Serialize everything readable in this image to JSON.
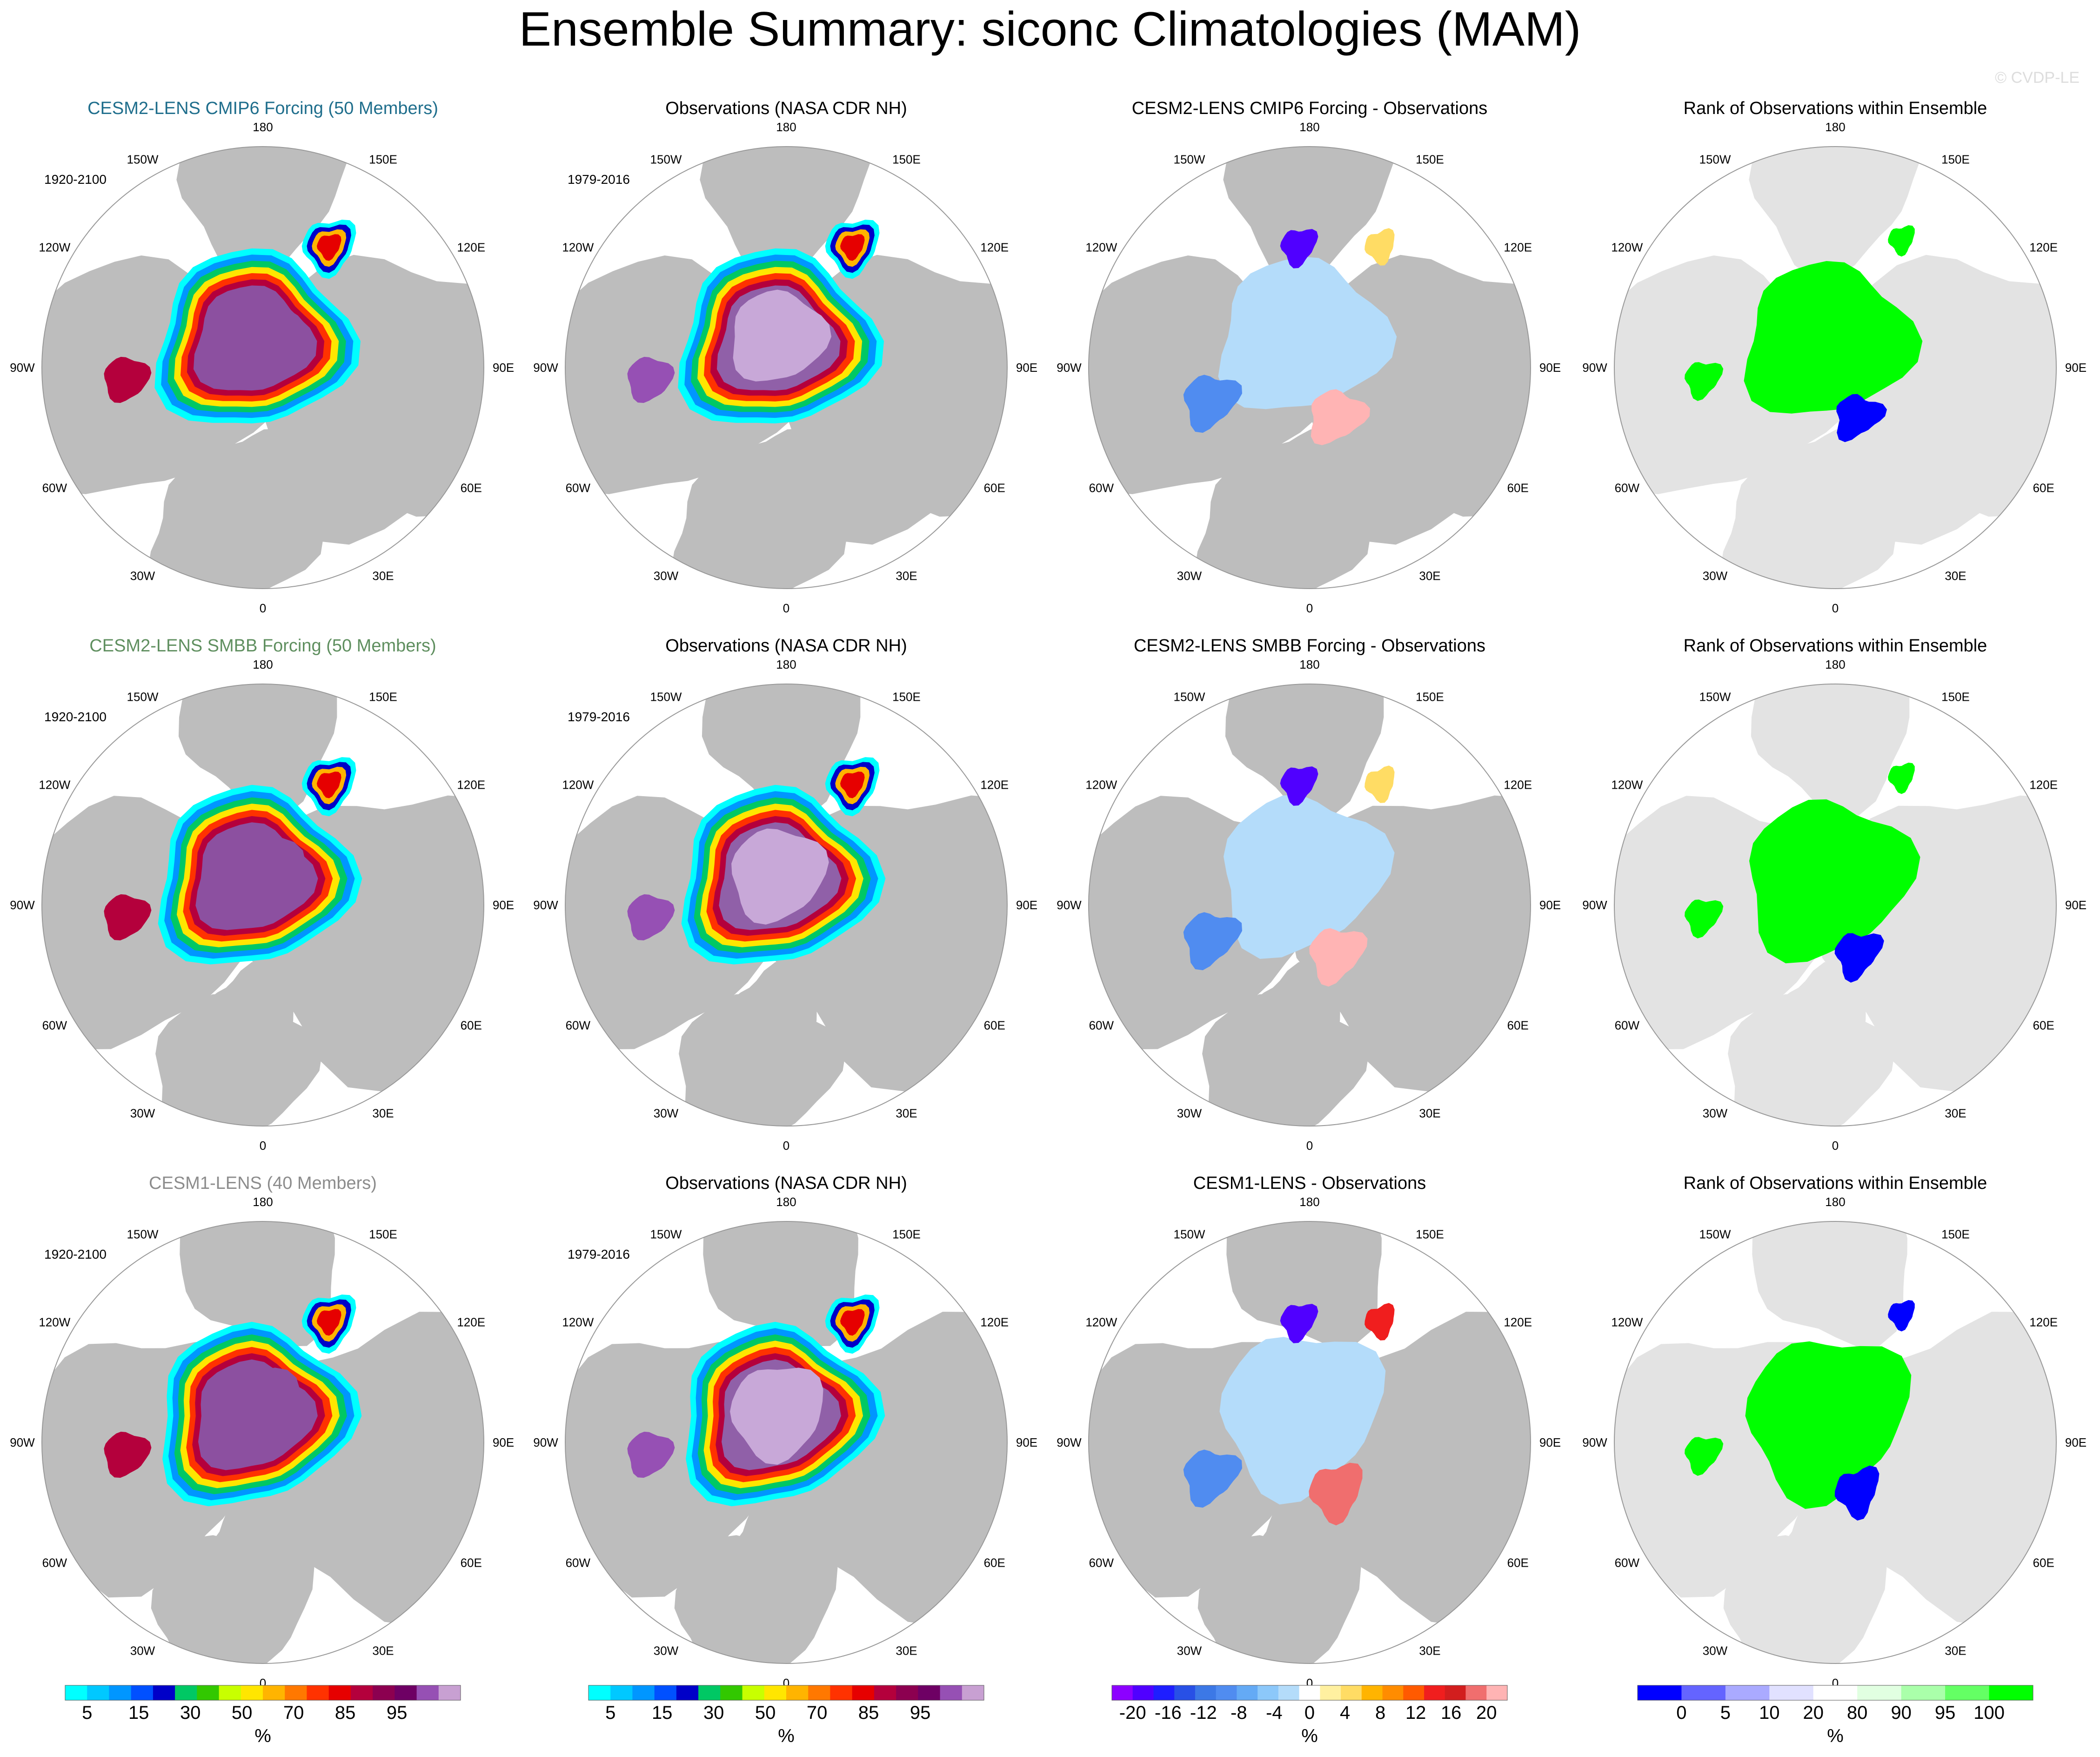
{
  "figure": {
    "title": "Ensemble Summary: siconc Climatologies (MAM)",
    "watermark": "© CVDP-LE"
  },
  "colors": {
    "land": "#bdbdbd",
    "ocean": "#ffffff",
    "rank_land": "#e3e3e3",
    "row_title_1": "#1f6e8c",
    "row_title_2": "#5f8f5f",
    "row_title_3": "#8c8c8c"
  },
  "map_labels": {
    "lon": [
      "180",
      "150E",
      "120E",
      "90E",
      "60E",
      "30E",
      "0",
      "30W",
      "60W",
      "90W",
      "120W",
      "150W"
    ]
  },
  "rows": [
    {
      "panels": [
        {
          "kind": "model",
          "title": "CESM2-LENS CMIP6 Forcing (50 Members)",
          "years": "1920-2100",
          "variant": 0
        },
        {
          "kind": "obs",
          "title": "Observations (NASA CDR NH)",
          "years": "1979-2016",
          "variant": 0
        },
        {
          "kind": "diff",
          "title": "CESM2-LENS CMIP6 Forcing - Observations",
          "variant": 0
        },
        {
          "kind": "rank",
          "title": "Rank of Observations within Ensemble",
          "variant": 0
        }
      ]
    },
    {
      "panels": [
        {
          "kind": "model",
          "title": "CESM2-LENS SMBB Forcing (50 Members)",
          "years": "1920-2100",
          "variant": 1
        },
        {
          "kind": "obs",
          "title": "Observations (NASA CDR NH)",
          "years": "1979-2016",
          "variant": 1
        },
        {
          "kind": "diff",
          "title": "CESM2-LENS SMBB Forcing - Observations",
          "variant": 1
        },
        {
          "kind": "rank",
          "title": "Rank of Observations within Ensemble",
          "variant": 1
        }
      ]
    },
    {
      "panels": [
        {
          "kind": "model",
          "title": "CESM1-LENS (40 Members)",
          "years": "1920-2100",
          "variant": 2
        },
        {
          "kind": "obs",
          "title": "Observations (NASA CDR NH)",
          "years": "1979-2016",
          "variant": 2
        },
        {
          "kind": "diff",
          "title": "CESM1-LENS - Observations",
          "variant": 2
        },
        {
          "kind": "rank",
          "title": "Rank of Observations within Ensemble",
          "variant": 2
        }
      ]
    }
  ],
  "colorbars": [
    {
      "name": "siconc-climatology",
      "unit": "%",
      "colors": [
        "#00ffff",
        "#00c8ff",
        "#0096ff",
        "#0050ff",
        "#0000c8",
        "#00c864",
        "#32c800",
        "#c8ff00",
        "#ffe600",
        "#ffb400",
        "#ff7800",
        "#ff3200",
        "#e60000",
        "#b4003c",
        "#8c0050",
        "#6e0064",
        "#9650b4",
        "#c8a0d2"
      ],
      "ticks": [
        "5",
        "15",
        "30",
        "50",
        "70",
        "85",
        "95"
      ]
    },
    {
      "name": "siconc-climatology-obs",
      "unit": "%",
      "colors": [
        "#00ffff",
        "#00c8ff",
        "#0096ff",
        "#0050ff",
        "#0000c8",
        "#00c864",
        "#32c800",
        "#c8ff00",
        "#ffe600",
        "#ffb400",
        "#ff7800",
        "#ff3200",
        "#e60000",
        "#b4003c",
        "#8c0050",
        "#6e0064",
        "#9650b4",
        "#c8a0d2"
      ],
      "ticks": [
        "5",
        "15",
        "30",
        "50",
        "70",
        "85",
        "95"
      ]
    },
    {
      "name": "siconc-difference",
      "unit": "%",
      "colors": [
        "#8c00ff",
        "#5000ff",
        "#1e1eff",
        "#2850e6",
        "#3c78e6",
        "#508cf0",
        "#64aaf5",
        "#8cc8fa",
        "#b4dcfa",
        "#ffffff",
        "#fff0a0",
        "#ffdc64",
        "#ffb400",
        "#ff8c00",
        "#ff5a00",
        "#f01e1e",
        "#d21e1e",
        "#f06e6e",
        "#ffb4b4"
      ],
      "ticks": [
        "-20",
        "-16",
        "-12",
        "-8",
        "-4",
        "0",
        "4",
        "8",
        "12",
        "16",
        "20"
      ]
    },
    {
      "name": "rank-of-observations",
      "unit": "%",
      "colors": [
        "#0000ff",
        "#6464ff",
        "#aaaaff",
        "#e1e1ff",
        "#ffffff",
        "#e1ffe1",
        "#aaffaa",
        "#64ff64",
        "#00ff00"
      ],
      "ticks": [
        "0",
        "5",
        "10",
        "20",
        "80",
        "90",
        "95",
        "100"
      ]
    }
  ],
  "chart_data": {
    "type": "heatmap",
    "title": "Ensemble Summary: siconc Climatologies (MAM)",
    "variable": "siconc",
    "season": "MAM",
    "units": "%",
    "projection": "North Polar Stereographic",
    "longitude_labels": [
      "180",
      "150E",
      "120E",
      "90E",
      "60E",
      "30E",
      "0",
      "30W",
      "60W",
      "90W",
      "120W",
      "150W"
    ],
    "panels": [
      {
        "row": 1,
        "col": 1,
        "title": "CESM2-LENS CMIP6 Forcing (50 Members)",
        "period": "1920-2100",
        "field": "ensemble mean siconc",
        "scale": "climatology"
      },
      {
        "row": 1,
        "col": 2,
        "title": "Observations (NASA CDR NH)",
        "period": "1979-2016",
        "field": "observed siconc",
        "scale": "climatology"
      },
      {
        "row": 1,
        "col": 3,
        "title": "CESM2-LENS CMIP6 Forcing - Observations",
        "field": "difference",
        "scale": "difference"
      },
      {
        "row": 1,
        "col": 4,
        "title": "Rank of Observations within Ensemble",
        "field": "rank",
        "scale": "rank"
      },
      {
        "row": 2,
        "col": 1,
        "title": "CESM2-LENS SMBB Forcing (50 Members)",
        "period": "1920-2100",
        "field": "ensemble mean siconc",
        "scale": "climatology"
      },
      {
        "row": 2,
        "col": 2,
        "title": "Observations (NASA CDR NH)",
        "period": "1979-2016",
        "field": "observed siconc",
        "scale": "climatology"
      },
      {
        "row": 2,
        "col": 3,
        "title": "CESM2-LENS SMBB Forcing - Observations",
        "field": "difference",
        "scale": "difference"
      },
      {
        "row": 2,
        "col": 4,
        "title": "Rank of Observations within Ensemble",
        "field": "rank",
        "scale": "rank"
      },
      {
        "row": 3,
        "col": 1,
        "title": "CESM1-LENS (40 Members)",
        "period": "1920-2100",
        "field": "ensemble mean siconc",
        "scale": "climatology"
      },
      {
        "row": 3,
        "col": 2,
        "title": "Observations (NASA CDR NH)",
        "period": "1979-2016",
        "field": "observed siconc",
        "scale": "climatology"
      },
      {
        "row": 3,
        "col": 3,
        "title": "CESM1-LENS - Observations",
        "field": "difference",
        "scale": "difference"
      },
      {
        "row": 3,
        "col": 4,
        "title": "Rank of Observations within Ensemble",
        "field": "rank",
        "scale": "rank"
      }
    ],
    "colorbar_ticks": {
      "climatology": [
        5,
        15,
        30,
        50,
        70,
        85,
        95
      ],
      "difference": [
        -20,
        -16,
        -12,
        -8,
        -4,
        0,
        4,
        8,
        12,
        16,
        20
      ],
      "rank": [
        0,
        5,
        10,
        20,
        80,
        90,
        95,
        100
      ]
    }
  }
}
